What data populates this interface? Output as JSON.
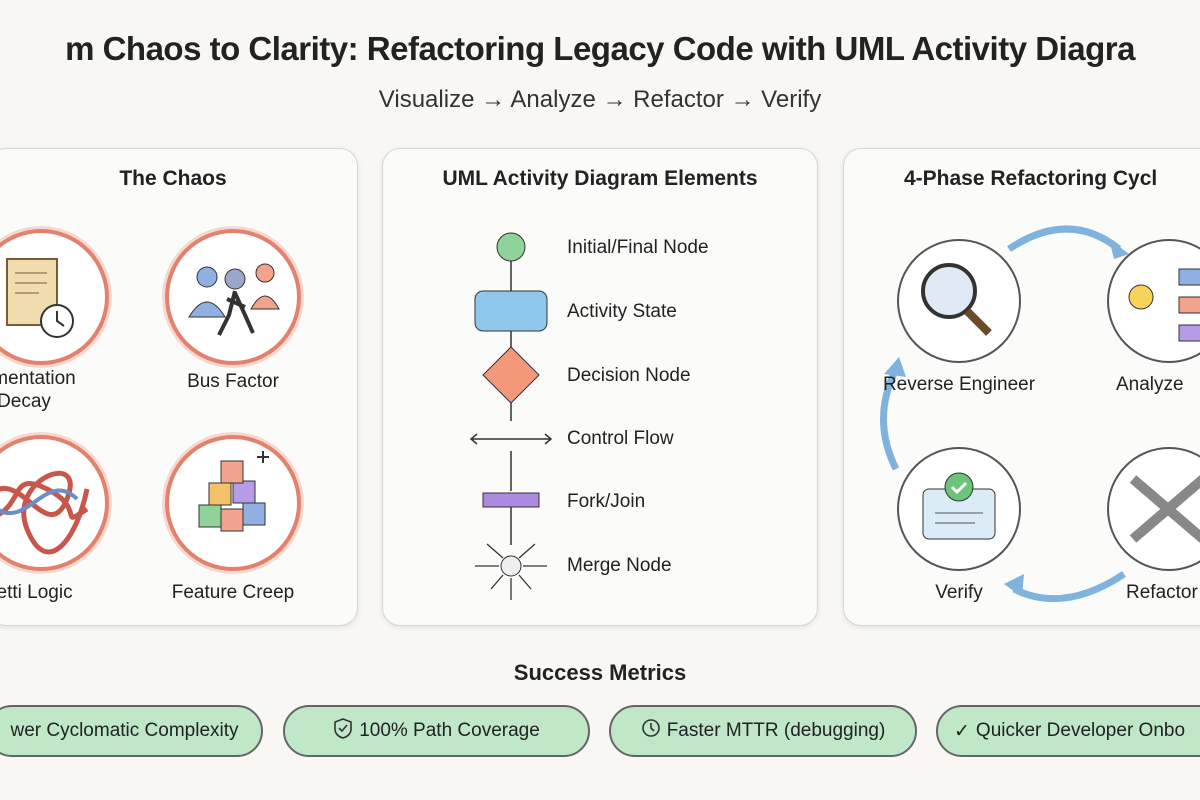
{
  "header": {
    "title": "m Chaos to Clarity: Refactoring Legacy Code with UML Activity Diagra",
    "subtitle": "Visualize → Analyze → Refactor → Verify"
  },
  "chaos": {
    "title": "The Chaos",
    "items": [
      {
        "label": "cumentation\nDecay",
        "icon": "document-clock-icon"
      },
      {
        "label": "Bus Factor",
        "icon": "people-walking-away-icon"
      },
      {
        "label": "ghetti Logic",
        "icon": "tangled-arrows-icon"
      },
      {
        "label": "Feature Creep",
        "icon": "stacked-blocks-icon"
      }
    ]
  },
  "uml": {
    "title": "UML Activity Diagram Elements",
    "items": [
      {
        "label": "Initial/Final Node"
      },
      {
        "label": "Activity State"
      },
      {
        "label": "Decision Node"
      },
      {
        "label": "Control Flow"
      },
      {
        "label": "Fork/Join"
      },
      {
        "label": "Merge Node"
      }
    ],
    "colors": {
      "initial": "#8fd39a",
      "activity": "#8fc8ea",
      "decision": "#f4987a",
      "fork": "#a98be0"
    }
  },
  "cycle": {
    "title": "4-Phase Refactoring Cycl",
    "phases": [
      {
        "label": "Reverse Engineer",
        "icon": "magnifier-icon"
      },
      {
        "label": "Analyze",
        "icon": "lightbulb-icon"
      },
      {
        "label": "Verify",
        "icon": "checklist-icon"
      },
      {
        "label": "Refactor",
        "icon": "wrench-icon"
      }
    ]
  },
  "metrics": {
    "title": "Success Metrics",
    "items": [
      {
        "label": "wer Cyclomatic Complexity",
        "icon": ""
      },
      {
        "label": "100% Path Coverage",
        "icon": "shield-check-icon"
      },
      {
        "label": "Faster MTTR (debugging)",
        "icon": "clock-icon"
      },
      {
        "label": "Quicker Developer Onbo",
        "icon": "checkmark-icon"
      }
    ],
    "pill_color": "#bfe7c8"
  }
}
